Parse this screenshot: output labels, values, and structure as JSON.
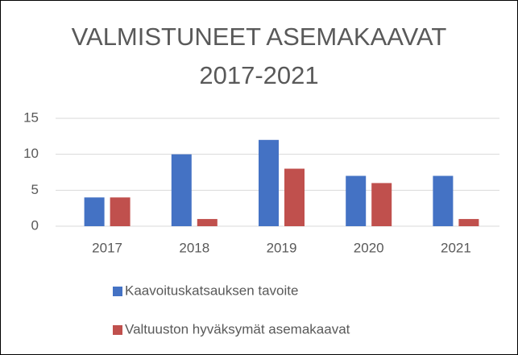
{
  "chart_data": {
    "type": "bar",
    "title": "VALMISTUNEET ASEMAKAAVAT 2017-2021",
    "categories": [
      "2017",
      "2018",
      "2019",
      "2020",
      "2021"
    ],
    "series": [
      {
        "name": "Kaavoituskatsauksen tavoite",
        "color": "#4472c4",
        "values": [
          4,
          10,
          12,
          7,
          7
        ]
      },
      {
        "name": "Valtuuston hyväksymät asemakaavat",
        "color": "#c0504d",
        "values": [
          4,
          1,
          8,
          6,
          1
        ]
      }
    ],
    "ylim": [
      0,
      15
    ],
    "yticks": [
      0,
      5,
      10,
      15
    ],
    "grid": true,
    "legend": "bottom"
  }
}
